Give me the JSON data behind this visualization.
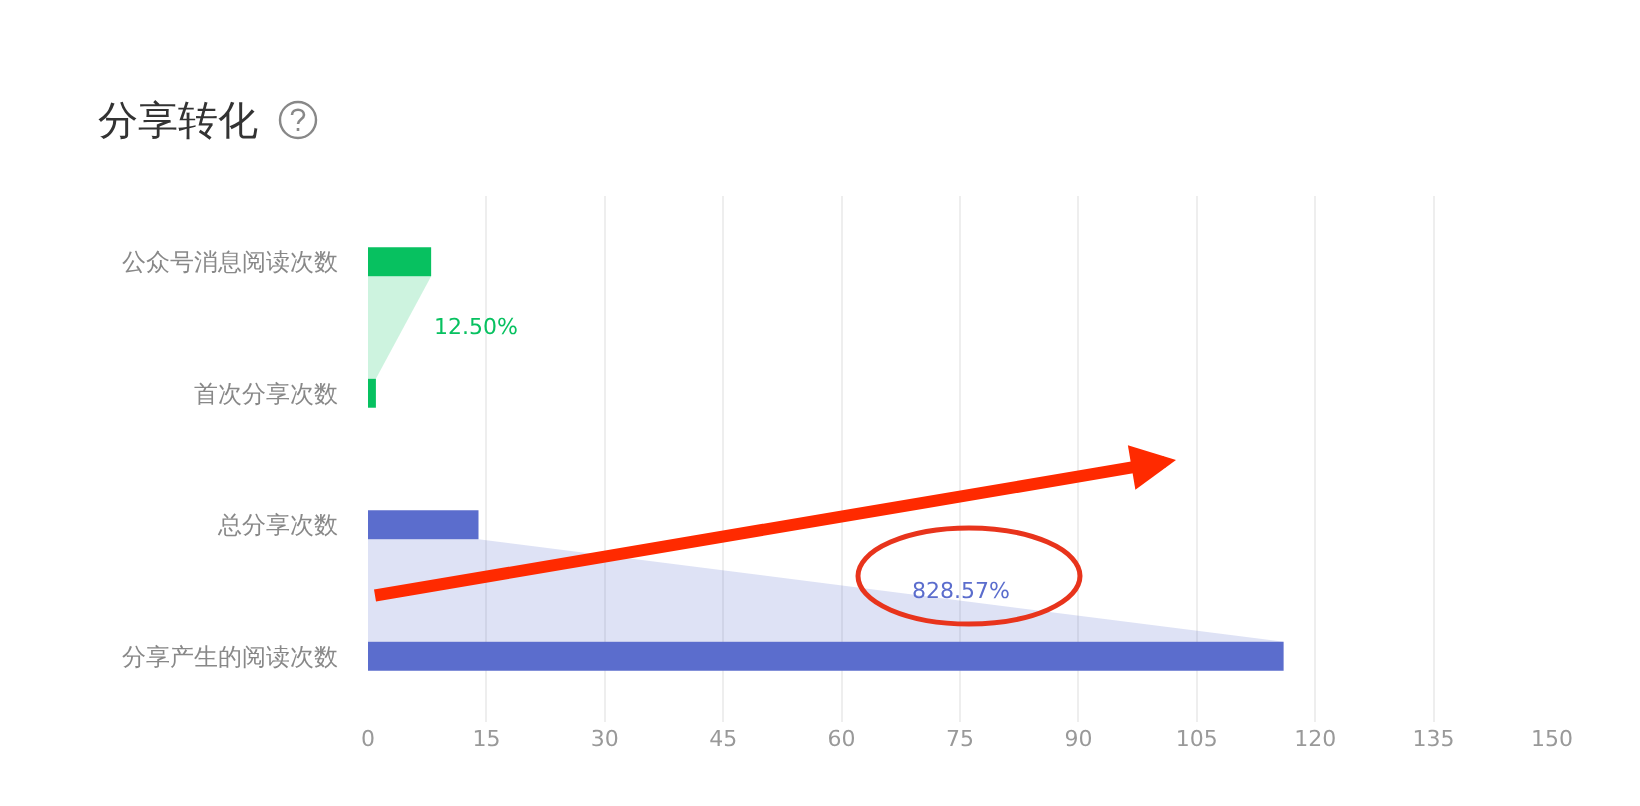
{
  "chart_data": {
    "type": "bar",
    "orientation": "horizontal",
    "title": "分享转化",
    "categories": [
      "公众号消息阅读次数",
      "首次分享次数",
      "总分享次数",
      "分享产生的阅读次数"
    ],
    "values": [
      8,
      1,
      14,
      116
    ],
    "colors": [
      "#07c160",
      "#07c160",
      "#5b6dcd",
      "#5b6dcd"
    ],
    "xlim": [
      0,
      150
    ],
    "xticks": [
      0,
      15,
      30,
      45,
      60,
      75,
      90,
      105,
      120,
      135,
      150
    ],
    "grid": "x",
    "annotations": [
      "12.50%",
      "828.57%"
    ]
  }
}
